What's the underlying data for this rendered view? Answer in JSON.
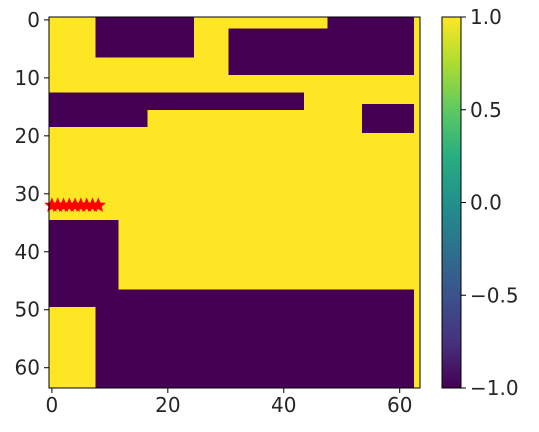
{
  "chart_data": {
    "type": "heatmap",
    "title": "",
    "xlabel": "",
    "ylabel": "",
    "grid_size": [
      64,
      64
    ],
    "xlim": [
      -0.5,
      63.5
    ],
    "ylim": [
      63.5,
      -0.5
    ],
    "x_ticks": [
      0,
      20,
      40,
      60
    ],
    "x_tick_labels": [
      "0",
      "20",
      "40",
      "60"
    ],
    "y_ticks": [
      0,
      10,
      20,
      30,
      40,
      50,
      60
    ],
    "y_tick_labels": [
      "0",
      "10",
      "20",
      "30",
      "40",
      "50",
      "60"
    ],
    "colormap": "viridis",
    "color_range": [
      -1.0,
      1.0
    ],
    "colorbar_ticks": [
      1.0,
      0.5,
      0.0,
      -0.5,
      -1.0
    ],
    "colorbar_tick_labels": [
      "1.0",
      "0.5",
      "0.0",
      "−0.5",
      "−1.0"
    ],
    "dark_regions_value": -1.0,
    "light_regions_value": 1.0,
    "dark_regions_approx": [
      {
        "x": [
          8,
          25
        ],
        "y": [
          0,
          7
        ]
      },
      {
        "x": [
          31,
          63
        ],
        "y": [
          2,
          10
        ]
      },
      {
        "x": [
          48,
          63
        ],
        "y": [
          0,
          4
        ]
      },
      {
        "x": [
          0,
          17
        ],
        "y": [
          13,
          19
        ]
      },
      {
        "x": [
          17,
          44
        ],
        "y": [
          13,
          16
        ]
      },
      {
        "x": [
          54,
          63
        ],
        "y": [
          15,
          26
        ]
      },
      {
        "x": [
          0,
          12
        ],
        "y": [
          35,
          48
        ]
      },
      {
        "x": [
          0,
          63
        ],
        "y": [
          47,
          50
        ]
      },
      {
        "x": [
          8,
          63
        ],
        "y": [
          50,
          64
        ]
      }
    ],
    "light_regions_approx": [
      {
        "x": [
          0,
          8
        ],
        "y": [
          0,
          13
        ]
      },
      {
        "x": [
          0,
          63
        ],
        "y": [
          20,
          35
        ]
      },
      {
        "x": [
          12,
          63
        ],
        "y": [
          35,
          47
        ]
      },
      {
        "x": [
          0,
          8
        ],
        "y": [
          50,
          64
        ]
      }
    ],
    "markers": {
      "shape": "star",
      "color": "#ff0000",
      "points": [
        [
          0,
          32
        ],
        [
          1,
          32
        ],
        [
          2,
          32
        ],
        [
          3,
          32
        ],
        [
          4,
          32
        ],
        [
          5,
          32
        ],
        [
          6,
          32
        ],
        [
          7,
          32
        ],
        [
          8,
          32
        ]
      ]
    }
  }
}
